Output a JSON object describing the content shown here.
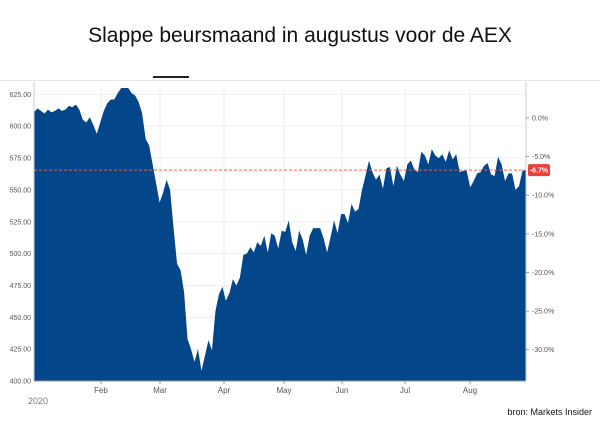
{
  "chart_data": {
    "type": "area",
    "title": "Slappe beursmaand in augustus voor de AEX",
    "source": "bron: Markets Insider",
    "year_label": "2020",
    "colors": {
      "fill": "#04468a",
      "reference_line": "#e8604c",
      "badge": "#e8403a"
    },
    "x_tick_labels": [
      "Feb",
      "Mar",
      "Apr",
      "May",
      "Jun",
      "Jul",
      "Aug"
    ],
    "y_left": {
      "ylim": [
        400,
        630
      ],
      "ticks": [
        "625.00",
        "600.00",
        "575.00",
        "550.00",
        "525.00",
        "500.00",
        "475.00",
        "450.00",
        "425.00",
        "400.00"
      ]
    },
    "y_right": {
      "ticks": [
        "0.0%",
        "-5.0%",
        "-10.0%",
        "-15.0%",
        "-20.0%",
        "-25.0%",
        "-30.0%"
      ]
    },
    "reference": {
      "value": 565.5,
      "label": "-6.7%"
    },
    "series": [
      {
        "values": [
          611,
          614,
          612,
          610,
          613,
          611,
          612,
          614,
          612,
          613,
          616,
          615,
          617,
          613,
          605,
          603,
          607,
          601,
          594,
          603,
          612,
          618,
          621,
          621,
          626,
          630,
          630,
          630,
          626,
          624,
          619,
          610,
          590,
          585,
          570,
          555,
          540,
          548,
          558,
          550,
          520,
          492,
          487,
          470,
          433,
          425,
          415,
          425,
          408,
          420,
          432,
          424,
          455,
          468,
          474,
          463,
          469,
          480,
          475,
          481,
          499,
          500,
          505,
          501,
          509,
          506,
          514,
          501,
          516,
          514,
          504,
          518,
          517,
          526,
          509,
          502,
          518,
          511,
          499,
          514,
          520,
          520,
          520,
          512,
          501,
          513,
          526,
          516,
          531,
          531,
          524,
          539,
          533,
          535,
          550,
          561,
          573,
          564,
          558,
          562,
          551,
          567,
          568,
          553,
          569,
          562,
          557,
          570,
          573,
          566,
          564,
          580,
          577,
          570,
          582,
          577,
          575,
          578,
          572,
          581,
          574,
          578,
          564,
          565,
          565,
          552,
          557,
          563,
          564,
          569,
          571,
          562,
          561,
          576,
          570,
          557,
          563,
          563,
          550,
          553,
          565,
          566
        ]
      }
    ]
  }
}
